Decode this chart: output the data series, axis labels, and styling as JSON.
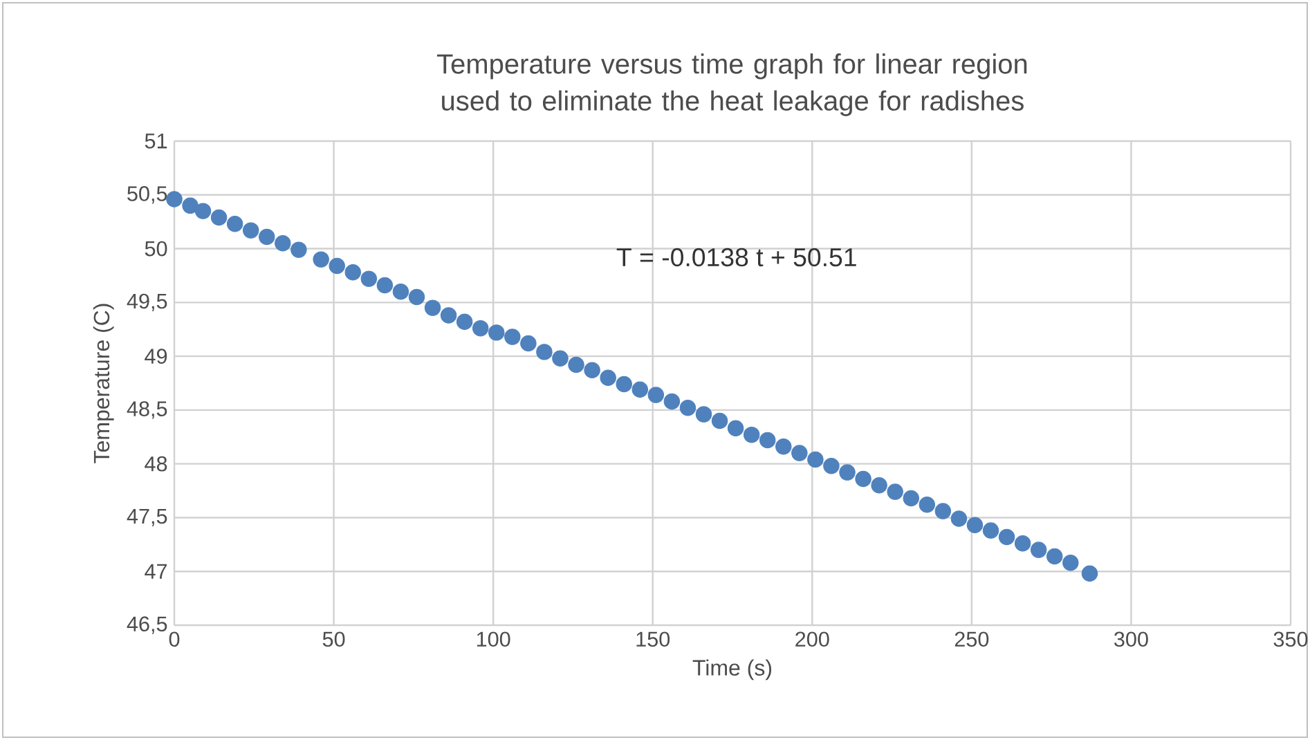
{
  "chart_data": {
    "type": "scatter",
    "title": "Temperature versus time graph for linear region used to eliminate the heat leakage for radishes",
    "xlabel": "Time (s)",
    "ylabel": "Temperature (C)",
    "annotations": [
      "T = -0.0138 t + 50.51"
    ],
    "xlim": [
      0,
      350
    ],
    "xticks": [
      0,
      50,
      100,
      150,
      200,
      250,
      300,
      350
    ],
    "ylim": [
      46.5,
      51
    ],
    "yticks": [
      {
        "value": 46.5,
        "label": "46,5"
      },
      47,
      {
        "value": 47.5,
        "label": "47,5"
      },
      48,
      {
        "value": 48.5,
        "label": "48,5"
      },
      49,
      {
        "value": 49.5,
        "label": "49,5"
      },
      50,
      {
        "value": 50.5,
        "label": "50,5"
      },
      51
    ],
    "grid": true,
    "legend": false,
    "marker": "circle",
    "series": [
      {
        "color": "#4f81bd",
        "x": [
          0,
          5,
          9,
          14,
          19,
          24,
          29,
          34,
          39,
          46,
          51,
          56,
          61,
          66,
          71,
          76,
          81,
          86,
          91,
          96,
          101,
          106,
          111,
          116,
          121,
          126,
          131,
          136,
          141,
          146,
          151,
          156,
          161,
          166,
          171,
          176,
          181,
          186,
          191,
          196,
          201,
          206,
          211,
          216,
          221,
          226,
          231,
          236,
          241,
          246,
          251,
          256,
          261,
          266,
          271,
          276,
          281,
          287
        ],
        "values": [
          50.46,
          50.4,
          50.35,
          50.29,
          50.23,
          50.17,
          50.11,
          50.05,
          49.99,
          49.9,
          49.84,
          49.78,
          49.72,
          49.66,
          49.6,
          49.55,
          49.45,
          49.38,
          49.32,
          49.26,
          49.22,
          49.18,
          49.12,
          49.04,
          48.98,
          48.92,
          48.87,
          48.8,
          48.74,
          48.69,
          48.64,
          48.58,
          48.52,
          48.46,
          48.4,
          48.33,
          48.27,
          48.22,
          48.16,
          48.1,
          48.04,
          47.98,
          47.92,
          47.86,
          47.8,
          47.74,
          47.68,
          47.62,
          47.56,
          47.49,
          47.43,
          47.38,
          47.32,
          47.26,
          47.2,
          47.14,
          47.08,
          46.98
        ]
      }
    ]
  }
}
